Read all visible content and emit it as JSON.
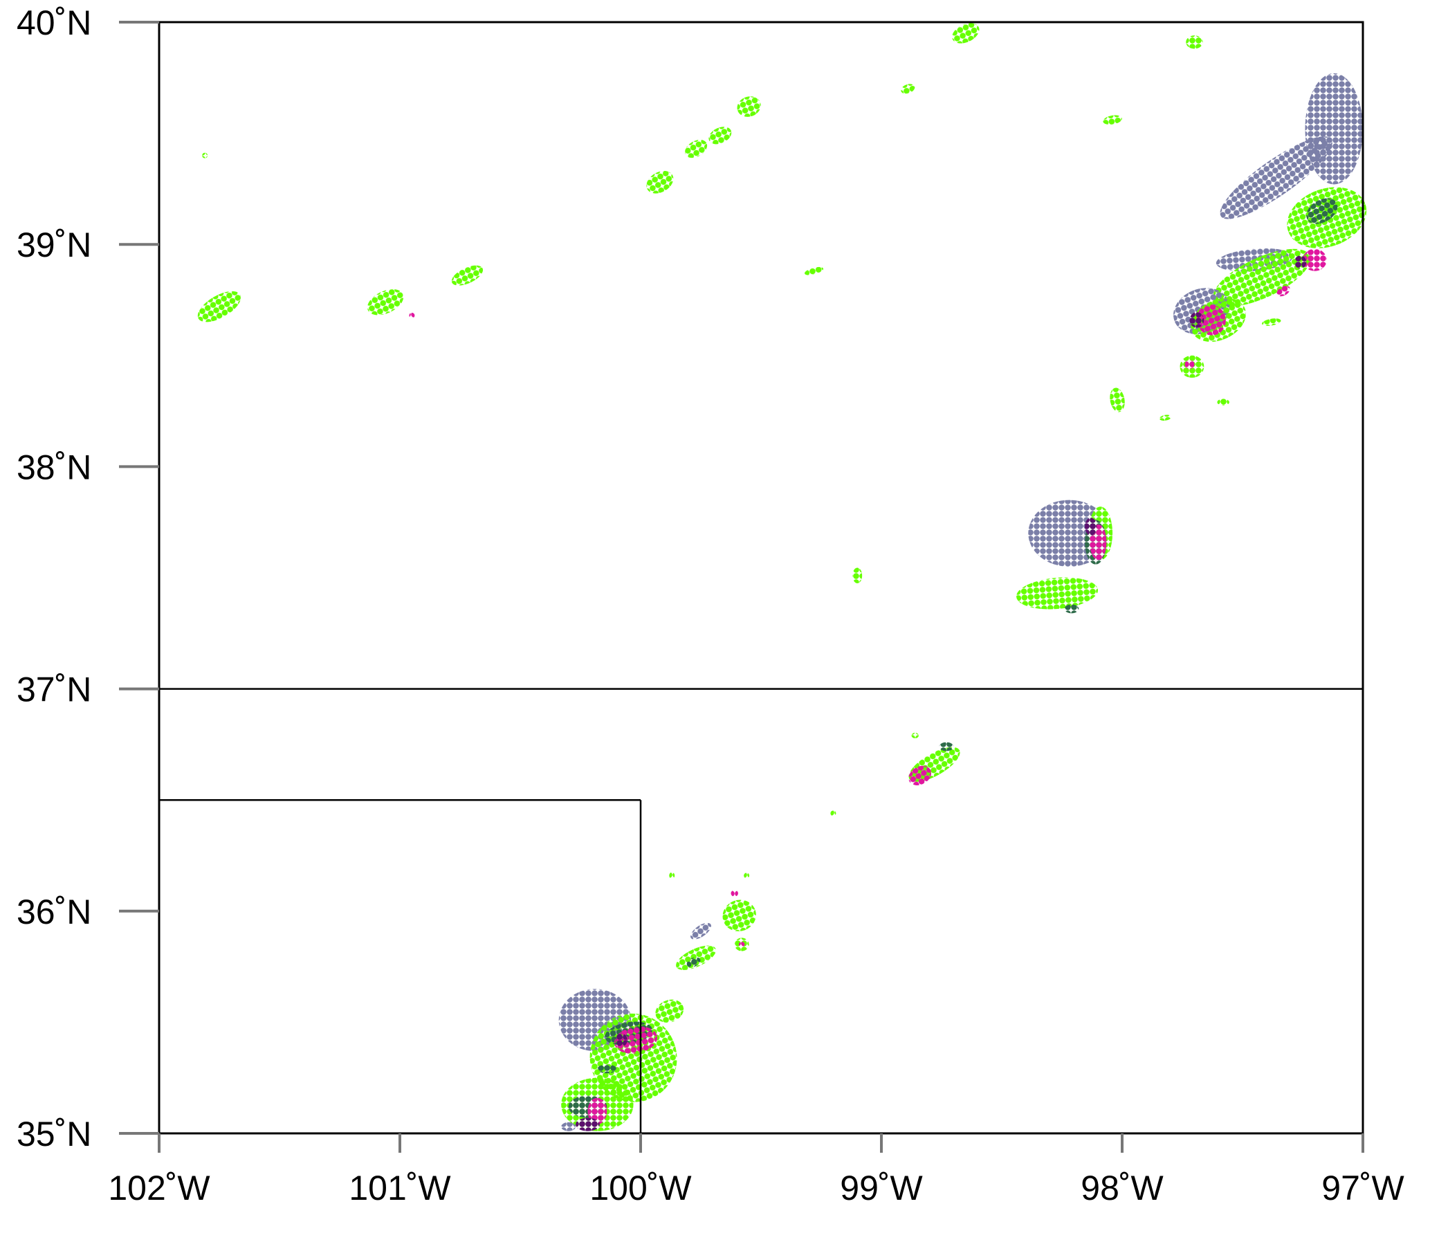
{
  "map": {
    "extent": {
      "lon_min": -102,
      "lon_max": -97,
      "lat_min": 35,
      "lat_max": 40
    },
    "lon_ticks": [
      {
        "value": -102,
        "label": "102˚W"
      },
      {
        "value": -101,
        "label": "101˚W"
      },
      {
        "value": -100,
        "label": "100˚W"
      },
      {
        "value": -99,
        "label": "99˚W"
      },
      {
        "value": -98,
        "label": "98˚W"
      },
      {
        "value": -97,
        "label": "97˚W"
      }
    ],
    "lat_ticks": [
      {
        "value": 40,
        "label": "40˚N"
      },
      {
        "value": 39,
        "label": "39˚N"
      },
      {
        "value": 38,
        "label": "38˚N"
      },
      {
        "value": 37,
        "label": "37˚N"
      },
      {
        "value": 36,
        "label": "36˚N"
      },
      {
        "value": 35,
        "label": "35˚N"
      }
    ],
    "borders": [
      {
        "name": "kansas-oklahoma-border",
        "points": [
          [
            -102,
            37
          ],
          [
            -97,
            37
          ]
        ]
      },
      {
        "name": "texas-panhandle-north-border",
        "points": [
          [
            -102,
            36.5
          ],
          [
            -100,
            36.5
          ]
        ]
      },
      {
        "name": "texas-panhandle-east-border",
        "points": [
          [
            -100,
            36.5
          ],
          [
            -100,
            35
          ]
        ]
      }
    ],
    "colors": {
      "light_green": "#66ff00",
      "dark_green": "#2e6b4a",
      "slate_blue": "#7b7fa8",
      "magenta": "#e0179f",
      "purple": "#5c0f6e"
    },
    "cells": [
      {
        "color": "light_green",
        "lon": -101.75,
        "lat": 38.72,
        "rx": 0.1,
        "ry": 0.05,
        "angle": 30
      },
      {
        "color": "light_green",
        "lon": -101.06,
        "lat": 38.74,
        "rx": 0.08,
        "ry": 0.05,
        "angle": 25
      },
      {
        "color": "light_green",
        "lon": -100.72,
        "lat": 38.86,
        "rx": 0.07,
        "ry": 0.035,
        "angle": 25
      },
      {
        "color": "magenta",
        "lon": -100.95,
        "lat": 38.68,
        "rx": 0.01,
        "ry": 0.01,
        "angle": 0
      },
      {
        "color": "light_green",
        "lon": -101.81,
        "lat": 39.4,
        "rx": 0.01,
        "ry": 0.01,
        "angle": 0
      },
      {
        "color": "light_green",
        "lon": -99.92,
        "lat": 39.28,
        "rx": 0.06,
        "ry": 0.045,
        "angle": 30
      },
      {
        "color": "light_green",
        "lon": -99.77,
        "lat": 39.43,
        "rx": 0.05,
        "ry": 0.035,
        "angle": 30
      },
      {
        "color": "light_green",
        "lon": -99.67,
        "lat": 39.49,
        "rx": 0.05,
        "ry": 0.035,
        "angle": 25
      },
      {
        "color": "light_green",
        "lon": -99.55,
        "lat": 39.62,
        "rx": 0.05,
        "ry": 0.045,
        "angle": 20
      },
      {
        "color": "light_green",
        "lon": -98.65,
        "lat": 39.95,
        "rx": 0.06,
        "ry": 0.04,
        "angle": 25
      },
      {
        "color": "light_green",
        "lon": -98.89,
        "lat": 39.7,
        "rx": 0.03,
        "ry": 0.02,
        "angle": 20
      },
      {
        "color": "light_green",
        "lon": -97.7,
        "lat": 39.91,
        "rx": 0.035,
        "ry": 0.03,
        "angle": 0
      },
      {
        "color": "light_green",
        "lon": -98.04,
        "lat": 39.56,
        "rx": 0.04,
        "ry": 0.02,
        "angle": 10
      },
      {
        "color": "light_green",
        "lon": -99.28,
        "lat": 38.88,
        "rx": 0.04,
        "ry": 0.015,
        "angle": 15
      },
      {
        "color": "light_green",
        "lon": -99.1,
        "lat": 37.51,
        "rx": 0.02,
        "ry": 0.035,
        "angle": 0
      },
      {
        "color": "slate_blue",
        "lon": -97.12,
        "lat": 39.52,
        "rx": 0.12,
        "ry": 0.25,
        "angle": 0
      },
      {
        "color": "slate_blue",
        "lon": -97.36,
        "lat": 39.3,
        "rx": 0.28,
        "ry": 0.08,
        "angle": 35
      },
      {
        "color": "slate_blue",
        "lon": -97.45,
        "lat": 38.93,
        "rx": 0.16,
        "ry": 0.05,
        "angle": 5
      },
      {
        "color": "light_green",
        "lon": -97.15,
        "lat": 39.12,
        "rx": 0.17,
        "ry": 0.13,
        "angle": 20
      },
      {
        "color": "dark_green",
        "lon": -97.17,
        "lat": 39.15,
        "rx": 0.07,
        "ry": 0.05,
        "angle": 30
      },
      {
        "color": "light_green",
        "lon": -97.42,
        "lat": 38.85,
        "rx": 0.22,
        "ry": 0.09,
        "angle": 25
      },
      {
        "color": "magenta",
        "lon": -97.2,
        "lat": 38.93,
        "rx": 0.05,
        "ry": 0.05,
        "angle": 0
      },
      {
        "color": "purple",
        "lon": -97.26,
        "lat": 38.92,
        "rx": 0.025,
        "ry": 0.03,
        "angle": 0
      },
      {
        "color": "magenta",
        "lon": -97.33,
        "lat": 38.79,
        "rx": 0.03,
        "ry": 0.02,
        "angle": 30
      },
      {
        "color": "slate_blue",
        "lon": -97.67,
        "lat": 38.7,
        "rx": 0.12,
        "ry": 0.1,
        "angle": 20
      },
      {
        "color": "light_green",
        "lon": -97.6,
        "lat": 38.66,
        "rx": 0.12,
        "ry": 0.09,
        "angle": 25
      },
      {
        "color": "magenta",
        "lon": -97.63,
        "lat": 38.66,
        "rx": 0.06,
        "ry": 0.07,
        "angle": 20
      },
      {
        "color": "purple",
        "lon": -97.69,
        "lat": 38.66,
        "rx": 0.03,
        "ry": 0.035,
        "angle": 0
      },
      {
        "color": "light_green",
        "lon": -97.71,
        "lat": 38.45,
        "rx": 0.05,
        "ry": 0.05,
        "angle": 0
      },
      {
        "color": "magenta",
        "lon": -97.72,
        "lat": 38.46,
        "rx": 0.02,
        "ry": 0.02,
        "angle": 0
      },
      {
        "color": "light_green",
        "lon": -97.38,
        "lat": 38.65,
        "rx": 0.04,
        "ry": 0.015,
        "angle": 10
      },
      {
        "color": "light_green",
        "lon": -98.02,
        "lat": 38.3,
        "rx": 0.03,
        "ry": 0.055,
        "angle": 10
      },
      {
        "color": "light_green",
        "lon": -97.82,
        "lat": 38.22,
        "rx": 0.025,
        "ry": 0.01,
        "angle": 10
      },
      {
        "color": "light_green",
        "lon": -97.58,
        "lat": 38.29,
        "rx": 0.025,
        "ry": 0.015,
        "angle": 0
      },
      {
        "color": "slate_blue",
        "lon": -98.22,
        "lat": 37.7,
        "rx": 0.17,
        "ry": 0.15,
        "angle": 0
      },
      {
        "color": "light_green",
        "lon": -98.27,
        "lat": 37.43,
        "rx": 0.17,
        "ry": 0.07,
        "angle": 5
      },
      {
        "color": "dark_green",
        "lon": -98.21,
        "lat": 37.36,
        "rx": 0.03,
        "ry": 0.02,
        "angle": 0
      },
      {
        "color": "light_green",
        "lon": -98.09,
        "lat": 37.7,
        "rx": 0.05,
        "ry": 0.12,
        "angle": 0
      },
      {
        "color": "dark_green",
        "lon": -98.11,
        "lat": 37.66,
        "rx": 0.045,
        "ry": 0.1,
        "angle": 0
      },
      {
        "color": "magenta",
        "lon": -98.1,
        "lat": 37.66,
        "rx": 0.035,
        "ry": 0.08,
        "angle": 0
      },
      {
        "color": "purple",
        "lon": -98.13,
        "lat": 37.73,
        "rx": 0.025,
        "ry": 0.04,
        "angle": 0
      },
      {
        "color": "light_green",
        "lon": -98.78,
        "lat": 36.66,
        "rx": 0.12,
        "ry": 0.05,
        "angle": 30
      },
      {
        "color": "magenta",
        "lon": -98.84,
        "lat": 36.61,
        "rx": 0.05,
        "ry": 0.04,
        "angle": 30
      },
      {
        "color": "dark_green",
        "lon": -98.73,
        "lat": 36.74,
        "rx": 0.03,
        "ry": 0.02,
        "angle": 0
      },
      {
        "color": "light_green",
        "lon": -98.86,
        "lat": 36.79,
        "rx": 0.015,
        "ry": 0.01,
        "angle": 0
      },
      {
        "color": "light_green",
        "lon": -99.2,
        "lat": 36.44,
        "rx": 0.01,
        "ry": 0.01,
        "angle": 0
      },
      {
        "color": "light_green",
        "lon": -99.59,
        "lat": 35.98,
        "rx": 0.07,
        "ry": 0.07,
        "angle": 20
      },
      {
        "color": "magenta",
        "lon": -99.61,
        "lat": 36.08,
        "rx": 0.015,
        "ry": 0.015,
        "angle": 0
      },
      {
        "color": "light_green",
        "lon": -99.58,
        "lat": 35.85,
        "rx": 0.03,
        "ry": 0.03,
        "angle": 0
      },
      {
        "color": "magenta",
        "lon": -99.58,
        "lat": 35.85,
        "rx": 0.012,
        "ry": 0.012,
        "angle": 0
      },
      {
        "color": "light_green",
        "lon": -99.56,
        "lat": 36.16,
        "rx": 0.01,
        "ry": 0.01,
        "angle": 0
      },
      {
        "color": "light_green",
        "lon": -99.87,
        "lat": 36.16,
        "rx": 0.01,
        "ry": 0.015,
        "angle": 0
      },
      {
        "color": "slate_blue",
        "lon": -99.75,
        "lat": 35.91,
        "rx": 0.05,
        "ry": 0.025,
        "angle": 35
      },
      {
        "color": "light_green",
        "lon": -99.77,
        "lat": 35.79,
        "rx": 0.09,
        "ry": 0.04,
        "angle": 25
      },
      {
        "color": "dark_green",
        "lon": -99.78,
        "lat": 35.77,
        "rx": 0.03,
        "ry": 0.02,
        "angle": 25
      },
      {
        "color": "slate_blue",
        "lon": -100.19,
        "lat": 35.51,
        "rx": 0.15,
        "ry": 0.14,
        "angle": 0
      },
      {
        "color": "light_green",
        "lon": -100.03,
        "lat": 35.34,
        "rx": 0.18,
        "ry": 0.2,
        "angle": 25
      },
      {
        "color": "light_green",
        "lon": -100.18,
        "lat": 35.13,
        "rx": 0.15,
        "ry": 0.12,
        "angle": 0
      },
      {
        "color": "dark_green",
        "lon": -100.05,
        "lat": 35.45,
        "rx": 0.1,
        "ry": 0.05,
        "angle": 10
      },
      {
        "color": "magenta",
        "lon": -100.02,
        "lat": 35.42,
        "rx": 0.09,
        "ry": 0.06,
        "angle": 10
      },
      {
        "color": "purple",
        "lon": -100.08,
        "lat": 35.42,
        "rx": 0.025,
        "ry": 0.03,
        "angle": 0
      },
      {
        "color": "dark_green",
        "lon": -100.22,
        "lat": 35.12,
        "rx": 0.08,
        "ry": 0.05,
        "angle": 0
      },
      {
        "color": "magenta",
        "lon": -100.18,
        "lat": 35.1,
        "rx": 0.04,
        "ry": 0.06,
        "angle": 0
      },
      {
        "color": "purple",
        "lon": -100.22,
        "lat": 35.04,
        "rx": 0.05,
        "ry": 0.03,
        "angle": 0
      },
      {
        "color": "slate_blue",
        "lon": -100.3,
        "lat": 35.03,
        "rx": 0.03,
        "ry": 0.02,
        "angle": 0
      },
      {
        "color": "dark_green",
        "lon": -100.14,
        "lat": 35.29,
        "rx": 0.04,
        "ry": 0.02,
        "angle": 0
      },
      {
        "color": "light_green",
        "lon": -99.88,
        "lat": 35.55,
        "rx": 0.06,
        "ry": 0.05,
        "angle": 20
      }
    ]
  }
}
